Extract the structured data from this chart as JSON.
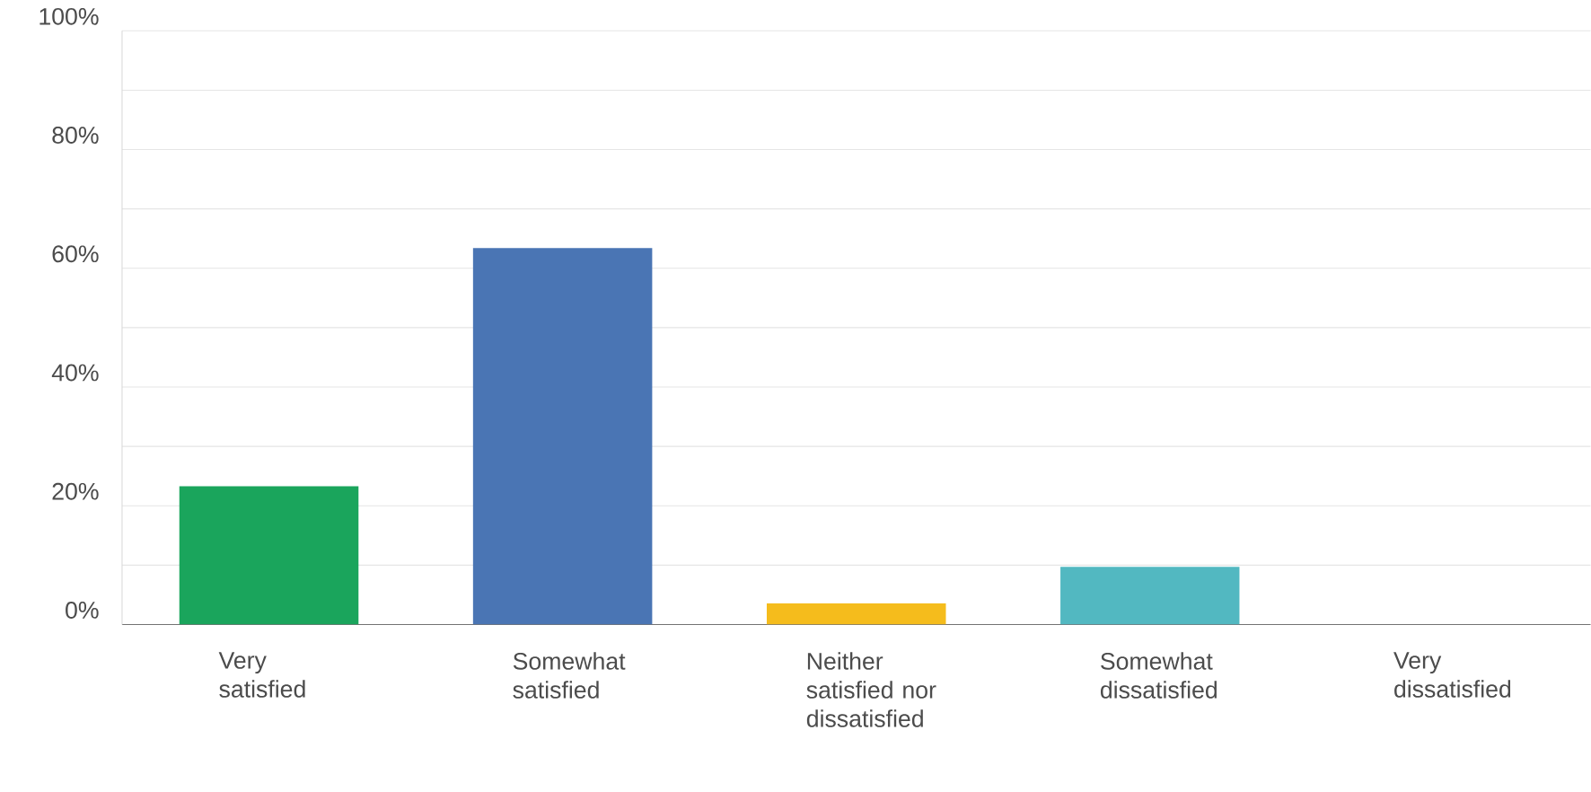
{
  "chart_data": {
    "type": "bar",
    "categories": [
      "Very satisfied",
      "Somewhat satisfied",
      "Neither satisfied nor dissatisfied",
      "Somewhat dissatisfied",
      "Very dissatisfied"
    ],
    "values": [
      23.3,
      63.4,
      3.6,
      9.7,
      0
    ],
    "colors": [
      "#1aa55c",
      "#4a75b4",
      "#f5bc1c",
      "#52b8c1",
      "#7f7f7f"
    ],
    "ylim": [
      0,
      100
    ],
    "yticks": [
      {
        "value": 0,
        "label": "0%"
      },
      {
        "value": 10,
        "label": null
      },
      {
        "value": 20,
        "label": "20%"
      },
      {
        "value": 30,
        "label": null
      },
      {
        "value": 40,
        "label": "40%"
      },
      {
        "value": 50,
        "label": null
      },
      {
        "value": 60,
        "label": "60%"
      },
      {
        "value": 70,
        "label": null
      },
      {
        "value": 80,
        "label": "80%"
      },
      {
        "value": 90,
        "label": null
      },
      {
        "value": 100,
        "label": "100%"
      }
    ],
    "grid": "y"
  }
}
